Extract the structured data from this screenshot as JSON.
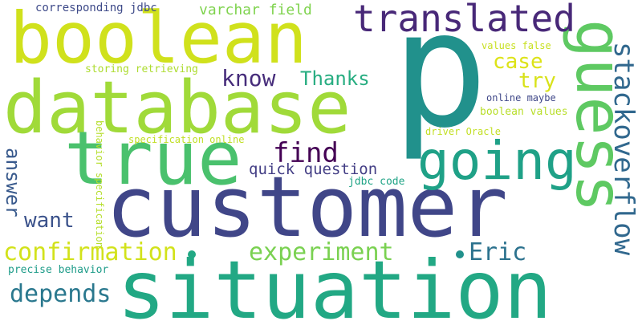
{
  "words": [
    {
      "text": "p",
      "color": "#21918c"
    },
    {
      "text": "customer",
      "color": "#404688"
    },
    {
      "text": "situation",
      "color": "#22a884"
    },
    {
      "text": "database",
      "color": "#a0da39"
    },
    {
      "text": "boolean",
      "color": "#d0e11c"
    },
    {
      "text": "true",
      "color": "#4ac16d"
    },
    {
      "text": "guess",
      "color": "#5ec962"
    },
    {
      "text": "translated",
      "color": "#482878"
    },
    {
      "text": "going",
      "color": "#1fa187"
    },
    {
      "text": "stackoverflow",
      "color": "#31688e"
    },
    {
      "text": "find",
      "color": "#440154"
    },
    {
      "text": "confirmation",
      "color": "#d2e21b"
    },
    {
      "text": "experiment",
      "color": "#7ad151"
    },
    {
      "text": "depends",
      "color": "#2a788e"
    },
    {
      "text": "Eric",
      "color": "#2c728e"
    },
    {
      "text": "know",
      "color": "#472d7b"
    },
    {
      "text": "Thanks",
      "color": "#27ad81"
    },
    {
      "text": "case",
      "color": "#dde318"
    },
    {
      "text": "try",
      "color": "#d8e219"
    },
    {
      "text": "want",
      "color": "#3b528b"
    },
    {
      "text": "answer",
      "color": "#38598c"
    },
    {
      "text": "quick question",
      "color": "#433e85"
    },
    {
      "text": "varchar field",
      "color": "#7fd34e"
    },
    {
      "text": "corresponding jdbc",
      "color": "#3e4a89"
    },
    {
      "text": "storing retrieving",
      "color": "#addc30"
    },
    {
      "text": "values false",
      "color": "#c8e020"
    },
    {
      "text": "specification online",
      "color": "#c0df25"
    },
    {
      "text": "behavior specification",
      "color": "#b5de2b"
    },
    {
      "text": "jdbc code",
      "color": "#20a486"
    },
    {
      "text": "online maybe",
      "color": "#3f4788"
    },
    {
      "text": "boolean values",
      "color": "#b8de29"
    },
    {
      "text": "driver Oracle",
      "color": "#c2df23"
    },
    {
      "text": "precise behavior",
      "color": "#1e9c89"
    }
  ],
  "dots": [
    {
      "color": "#22a884"
    },
    {
      "color": "#21918c"
    }
  ]
}
